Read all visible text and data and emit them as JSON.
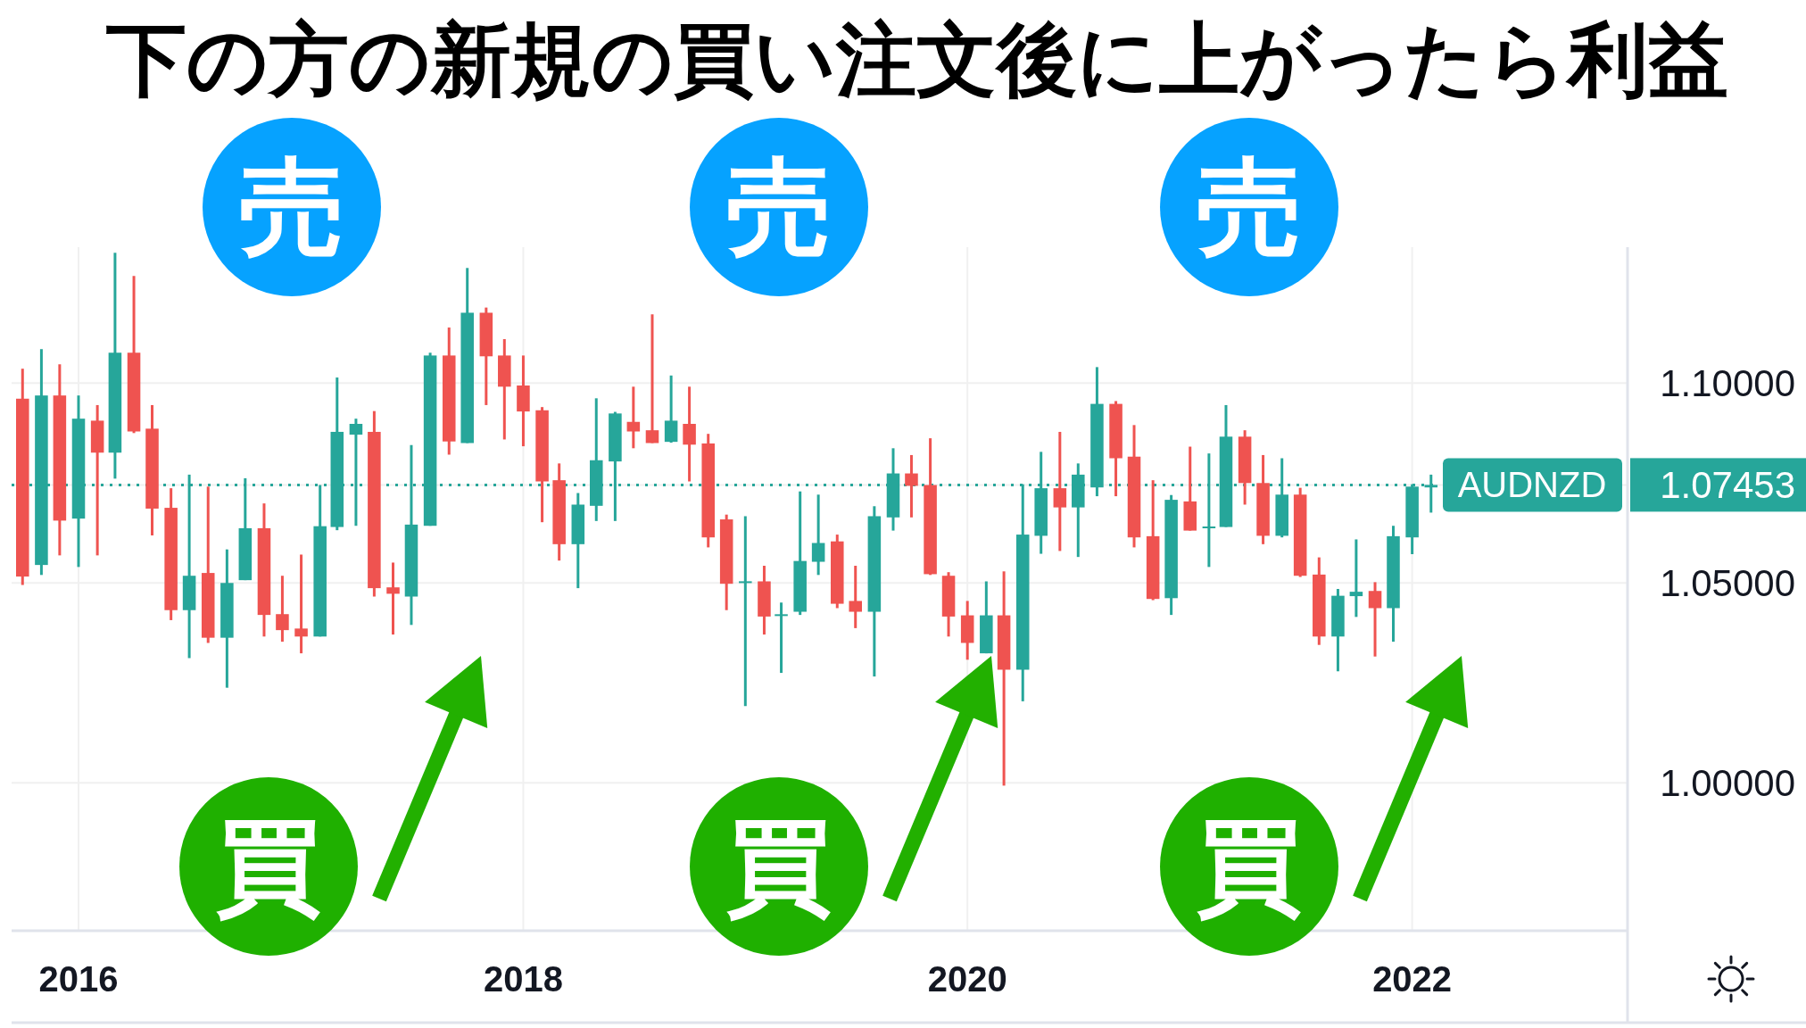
{
  "chart_data": {
    "type": "candlestick",
    "title": "下の方の新規の買い注文後に上がったら利益",
    "x": [
      "2015-10",
      "2015-11",
      "2015-12",
      "2016-01",
      "2016-02",
      "2016-03",
      "2016-04",
      "2016-05",
      "2016-06",
      "2016-07",
      "2016-08",
      "2016-09",
      "2016-10",
      "2016-11",
      "2016-12",
      "2017-01",
      "2017-02",
      "2017-03",
      "2017-04",
      "2017-05",
      "2017-06",
      "2017-07",
      "2017-08",
      "2017-09",
      "2017-10",
      "2017-11",
      "2017-12",
      "2018-01",
      "2018-02",
      "2018-03",
      "2018-04",
      "2018-05",
      "2018-06",
      "2018-07",
      "2018-08",
      "2018-09",
      "2018-10",
      "2018-11",
      "2018-12",
      "2019-01",
      "2019-02",
      "2019-03",
      "2019-04",
      "2019-05",
      "2019-06",
      "2019-07",
      "2019-08",
      "2019-09",
      "2019-10",
      "2019-11",
      "2019-12",
      "2020-01",
      "2020-02",
      "2020-03",
      "2020-04",
      "2020-05",
      "2020-06",
      "2020-07",
      "2020-08",
      "2020-09",
      "2020-10",
      "2020-11",
      "2020-12",
      "2021-01",
      "2021-02",
      "2021-03",
      "2021-04",
      "2021-05",
      "2021-06",
      "2021-07",
      "2021-08",
      "2021-09",
      "2021-10",
      "2021-11",
      "2021-12",
      "2022-01",
      "2022-02"
    ],
    "ohlc": [
      [
        1.0961,
        1.1036,
        1.0495,
        1.0516
      ],
      [
        1.0545,
        1.1085,
        1.052,
        1.0969
      ],
      [
        1.0969,
        1.1047,
        1.0569,
        1.0656
      ],
      [
        1.0661,
        1.0969,
        1.054,
        1.0911
      ],
      [
        1.0906,
        1.0945,
        1.0569,
        1.0826
      ],
      [
        1.0826,
        1.1326,
        1.0761,
        1.1076
      ],
      [
        1.1076,
        1.1268,
        1.0875,
        1.0879
      ],
      [
        1.0886,
        1.0945,
        1.0619,
        1.0686
      ],
      [
        1.0688,
        1.0737,
        1.0407,
        1.0432
      ],
      [
        1.0432,
        1.0771,
        1.0312,
        1.0518
      ],
      [
        1.0525,
        1.0741,
        1.035,
        1.0363
      ],
      [
        1.0363,
        1.0584,
        1.0238,
        1.05
      ],
      [
        1.0507,
        1.0762,
        1.0507,
        1.0637
      ],
      [
        1.0637,
        1.0699,
        1.0366,
        1.042
      ],
      [
        1.0422,
        1.0518,
        1.0353,
        1.0382
      ],
      [
        1.0386,
        1.0571,
        1.0324,
        1.0366
      ],
      [
        1.0366,
        1.0745,
        1.0366,
        1.0642
      ],
      [
        1.064,
        1.1014,
        1.0632,
        1.0878
      ],
      [
        1.0871,
        1.0911,
        1.0643,
        1.0898
      ],
      [
        1.0878,
        1.093,
        1.0466,
        1.0487
      ],
      [
        1.0489,
        1.0551,
        1.0371,
        1.0473
      ],
      [
        1.0466,
        1.0845,
        1.0395,
        1.0646
      ],
      [
        1.0643,
        1.1076,
        1.0643,
        1.1069
      ],
      [
        1.1069,
        1.1139,
        1.0821,
        1.0854
      ],
      [
        1.085,
        1.1288,
        1.085,
        1.1176
      ],
      [
        1.1176,
        1.1189,
        1.0945,
        1.1067
      ],
      [
        1.1069,
        1.111,
        1.0859,
        1.0991
      ],
      [
        1.0994,
        1.1069,
        1.0842,
        1.0929
      ],
      [
        1.0932,
        1.094,
        1.0652,
        1.0754
      ],
      [
        1.0757,
        1.0799,
        1.0556,
        1.0597
      ],
      [
        1.0597,
        1.0725,
        1.0487,
        1.0696
      ],
      [
        1.0693,
        1.0962,
        1.0655,
        1.0807
      ],
      [
        1.0804,
        1.0928,
        1.0655,
        1.0924
      ],
      [
        1.0903,
        1.0991,
        1.0837,
        1.0879
      ],
      [
        1.0882,
        1.1172,
        1.085,
        1.085
      ],
      [
        1.0853,
        1.1019,
        1.0851,
        1.0906
      ],
      [
        1.0898,
        1.0991,
        1.0754,
        1.0846
      ],
      [
        1.0849,
        1.0873,
        1.0589,
        1.0614
      ],
      [
        1.0659,
        1.0671,
        1.0432,
        1.0498
      ],
      [
        1.05,
        1.0667,
        1.0192,
        1.0504
      ],
      [
        1.0504,
        1.0543,
        1.0371,
        1.0416
      ],
      [
        1.0418,
        1.0451,
        1.0275,
        1.0421
      ],
      [
        1.0428,
        1.0729,
        1.042,
        1.0555
      ],
      [
        1.0553,
        1.0721,
        1.052,
        1.06
      ],
      [
        1.0604,
        1.0621,
        1.0437,
        1.0448
      ],
      [
        1.0455,
        1.0543,
        1.0387,
        1.0428
      ],
      [
        1.0428,
        1.0692,
        1.0266,
        1.0667
      ],
      [
        1.0664,
        1.0837,
        1.0631,
        1.0774
      ],
      [
        1.0774,
        1.082,
        1.0664,
        1.0743
      ],
      [
        1.0745,
        1.0862,
        1.052,
        1.0522
      ],
      [
        1.0518,
        1.0527,
        1.0366,
        1.0416
      ],
      [
        1.0419,
        1.0455,
        1.0308,
        1.035
      ],
      [
        1.0324,
        1.0504,
        1.0324,
        1.0419
      ],
      [
        1.0419,
        1.0529,
        0.9993,
        1.0283
      ],
      [
        1.0283,
        1.0747,
        1.0204,
        1.0621
      ],
      [
        1.0618,
        1.0828,
        1.0573,
        1.0737
      ],
      [
        1.0737,
        1.0878,
        1.058,
        1.0689
      ],
      [
        1.0689,
        1.0799,
        1.0565,
        1.0771
      ],
      [
        1.0739,
        1.104,
        1.0717,
        1.0948
      ],
      [
        1.0948,
        1.0955,
        1.0717,
        1.0812
      ],
      [
        1.0816,
        1.0895,
        1.0589,
        1.0614
      ],
      [
        1.0617,
        1.0757,
        1.0457,
        1.046
      ],
      [
        1.0462,
        1.072,
        1.042,
        1.0708
      ],
      [
        1.0704,
        1.0841,
        1.0631,
        1.0631
      ],
      [
        1.0637,
        1.0824,
        1.054,
        1.0641
      ],
      [
        1.064,
        1.0945,
        1.064,
        1.0866
      ],
      [
        1.0866,
        1.0882,
        1.0696,
        1.075
      ],
      [
        1.075,
        1.082,
        1.0597,
        1.0618
      ],
      [
        1.0618,
        1.0812,
        1.0614,
        1.0721
      ],
      [
        1.0721,
        1.0738,
        1.0515,
        1.0518
      ],
      [
        1.0521,
        1.0564,
        1.0345,
        1.0366
      ],
      [
        1.0366,
        1.0485,
        1.0279,
        1.0468
      ],
      [
        1.0467,
        1.0609,
        1.0415,
        1.0478
      ],
      [
        1.048,
        1.0502,
        1.0316,
        1.0437
      ],
      [
        1.0437,
        1.0643,
        1.0353,
        1.0617
      ],
      [
        1.0614,
        1.0747,
        1.0572,
        1.0741
      ],
      [
        1.0739,
        1.0771,
        1.0676,
        1.07453
      ]
    ],
    "colors": [
      "#ef5350",
      "#26a69a",
      "#ef5350",
      "#26a69a",
      "#ef5350",
      "#26a69a",
      "#ef5350",
      "#ef5350",
      "#ef5350",
      "#26a69a",
      "#ef5350",
      "#26a69a",
      "#26a69a",
      "#ef5350",
      "#ef5350",
      "#ef5350",
      "#26a69a",
      "#26a69a",
      "#26a69a",
      "#ef5350",
      "#ef5350",
      "#26a69a",
      "#26a69a",
      "#ef5350",
      "#26a69a",
      "#ef5350",
      "#ef5350",
      "#ef5350",
      "#ef5350",
      "#ef5350",
      "#26a69a",
      "#26a69a",
      "#26a69a",
      "#ef5350",
      "#ef5350",
      "#26a69a",
      "#ef5350",
      "#ef5350",
      "#ef5350",
      "#26a69a",
      "#ef5350",
      "#26a69a",
      "#26a69a",
      "#26a69a",
      "#ef5350",
      "#ef5350",
      "#26a69a",
      "#26a69a",
      "#ef5350",
      "#ef5350",
      "#ef5350",
      "#ef5350",
      "#26a69a",
      "#ef5350",
      "#26a69a",
      "#26a69a",
      "#ef5350",
      "#26a69a",
      "#26a69a",
      "#ef5350",
      "#ef5350",
      "#ef5350",
      "#26a69a",
      "#ef5350",
      "#26a69a",
      "#26a69a",
      "#ef5350",
      "#ef5350",
      "#26a69a",
      "#ef5350",
      "#ef5350",
      "#26a69a",
      "#26a69a",
      "#ef5350",
      "#26a69a",
      "#26a69a",
      "#26a69a"
    ],
    "xlim": [
      "2015-09-13",
      "2022-12-21"
    ],
    "xticks": [
      "2016",
      "2018",
      "2020",
      "2022"
    ],
    "ylim": [
      0.963,
      1.134
    ],
    "yticks": [
      {
        "value": 1,
        "label": "1.00000"
      },
      {
        "value": 1.05,
        "label": "1.05000"
      },
      {
        "value": 1.07453,
        "label": "1.07453"
      },
      {
        "value": 1.1,
        "label": "1.10000"
      }
    ],
    "grid": true,
    "ref_lines": [
      {
        "axis": "y",
        "value": 1.07453,
        "label": "AUDNZD",
        "color": "#26a69a",
        "line_style": "dotted"
      }
    ],
    "annotations": [
      "売",
      "売",
      "売",
      "買",
      "買",
      "買"
    ]
  }
}
